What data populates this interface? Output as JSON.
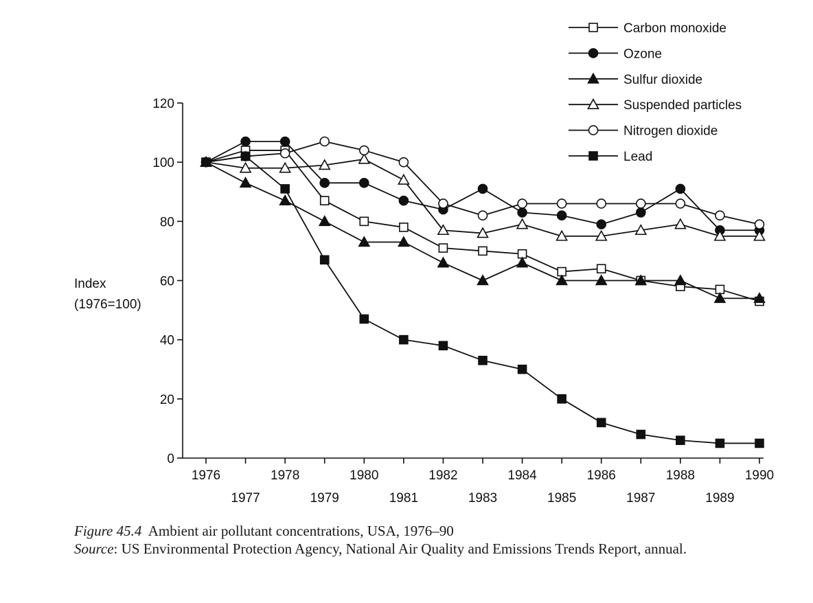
{
  "chart_data": {
    "type": "line",
    "ylabel_line1": "Index",
    "ylabel_line2": "(1976=100)",
    "ylim": [
      0,
      120
    ],
    "yticks": [
      0,
      20,
      40,
      60,
      80,
      100,
      120
    ],
    "xlim": [
      1976,
      1990
    ],
    "x": [
      1976,
      1977,
      1978,
      1979,
      1980,
      1981,
      1982,
      1983,
      1984,
      1985,
      1986,
      1987,
      1988,
      1989,
      1990
    ],
    "legend_placement": "top-right",
    "grid": false,
    "series": [
      {
        "name": "Carbon monoxide",
        "marker": "open-square",
        "values": [
          100,
          104,
          104,
          87,
          80,
          78,
          71,
          70,
          69,
          63,
          64,
          60,
          58,
          57,
          53
        ]
      },
      {
        "name": "Ozone",
        "marker": "filled-circle",
        "values": [
          100,
          107,
          107,
          93,
          93,
          87,
          84,
          91,
          83,
          82,
          79,
          83,
          91,
          77,
          77
        ]
      },
      {
        "name": "Sulfur dioxide",
        "marker": "filled-triangle",
        "values": [
          100,
          93,
          87,
          80,
          73,
          73,
          66,
          60,
          66,
          60,
          60,
          60,
          60,
          54,
          54
        ]
      },
      {
        "name": "Suspended particles",
        "marker": "open-triangle",
        "values": [
          100,
          98,
          98,
          99,
          101,
          94,
          77,
          76,
          79,
          75,
          75,
          77,
          79,
          75,
          75
        ]
      },
      {
        "name": "Nitrogen dioxide",
        "marker": "open-circle",
        "values": [
          100,
          102,
          103,
          107,
          104,
          100,
          86,
          82,
          86,
          86,
          86,
          86,
          86,
          82,
          79
        ]
      },
      {
        "name": "Lead",
        "marker": "filled-square",
        "values": [
          100,
          102,
          91,
          67,
          47,
          40,
          38,
          33,
          30,
          20,
          12,
          8,
          6,
          5,
          5
        ]
      }
    ]
  },
  "caption": {
    "figure_label": "Figure 45.4",
    "figure_text": "Ambient air pollutant concentrations, USA, 1976–90",
    "source_label": "Source",
    "source_text": ": US Environmental Protection Agency, National Air Quality and Emissions Trends Report, annual."
  }
}
